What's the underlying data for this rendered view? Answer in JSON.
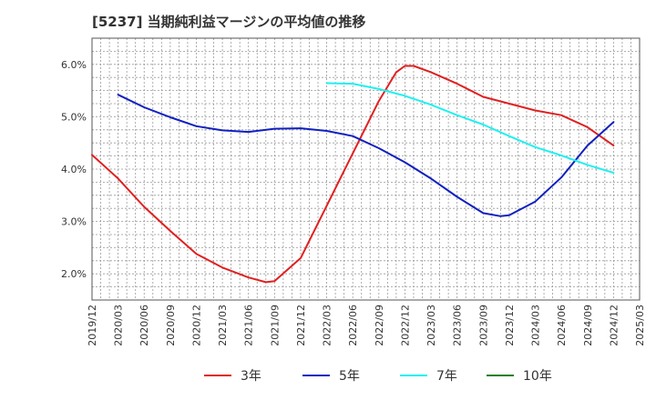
{
  "chart_data": {
    "type": "line",
    "title": "[5237]  当期純利益マージンの平均値の推移",
    "xlabel": "",
    "ylabel": "",
    "x_ticks": [
      "2019/12",
      "2020/03",
      "2020/06",
      "2020/09",
      "2020/12",
      "2021/03",
      "2021/06",
      "2021/09",
      "2021/12",
      "2022/03",
      "2022/06",
      "2022/09",
      "2022/12",
      "2023/03",
      "2023/06",
      "2023/09",
      "2023/12",
      "2024/03",
      "2024/06",
      "2024/09",
      "2024/12",
      "2025/03"
    ],
    "y_ticks": [
      "2.0%",
      "3.0%",
      "4.0%",
      "5.0%",
      "6.0%"
    ],
    "ylim": [
      1.5,
      6.5
    ],
    "grid": true,
    "legend_position": "bottom",
    "series": [
      {
        "name": "3年",
        "color": "#e02020",
        "x": [
          "2019/12",
          "2020/03",
          "2020/06",
          "2020/09",
          "2020/12",
          "2021/03",
          "2021/06",
          "2021/08",
          "2021/09",
          "2021/12",
          "2022/03",
          "2022/06",
          "2022/09",
          "2022/11",
          "2022/12",
          "2023/01",
          "2023/03",
          "2023/06",
          "2023/09",
          "2023/12",
          "2024/03",
          "2024/06",
          "2024/09",
          "2024/12"
        ],
        "values": [
          4.27,
          3.82,
          3.28,
          2.82,
          2.38,
          2.12,
          1.93,
          1.84,
          1.86,
          2.3,
          3.3,
          4.3,
          5.3,
          5.85,
          5.97,
          5.97,
          5.85,
          5.63,
          5.38,
          5.25,
          5.12,
          5.03,
          4.8,
          4.45
        ]
      },
      {
        "name": "5年",
        "color": "#1020c0",
        "x": [
          "2020/03",
          "2020/06",
          "2020/09",
          "2020/12",
          "2021/03",
          "2021/06",
          "2021/09",
          "2021/12",
          "2022/03",
          "2022/06",
          "2022/09",
          "2022/12",
          "2023/03",
          "2023/06",
          "2023/09",
          "2023/11",
          "2023/12",
          "2024/03",
          "2024/06",
          "2024/09",
          "2024/12"
        ],
        "values": [
          5.42,
          5.18,
          4.99,
          4.82,
          4.74,
          4.71,
          4.77,
          4.78,
          4.73,
          4.63,
          4.4,
          4.13,
          3.82,
          3.47,
          3.16,
          3.1,
          3.12,
          3.38,
          3.84,
          4.45,
          4.9
        ]
      },
      {
        "name": "7年",
        "color": "#20f0f0",
        "x": [
          "2022/03",
          "2022/06",
          "2022/09",
          "2022/12",
          "2023/03",
          "2023/06",
          "2023/09",
          "2023/12",
          "2024/03",
          "2024/06",
          "2024/09",
          "2024/12"
        ],
        "values": [
          5.64,
          5.63,
          5.53,
          5.4,
          5.23,
          5.03,
          4.85,
          4.63,
          4.42,
          4.26,
          4.08,
          3.93
        ]
      },
      {
        "name": "10年",
        "color": "#208020",
        "x": [],
        "values": []
      }
    ]
  }
}
